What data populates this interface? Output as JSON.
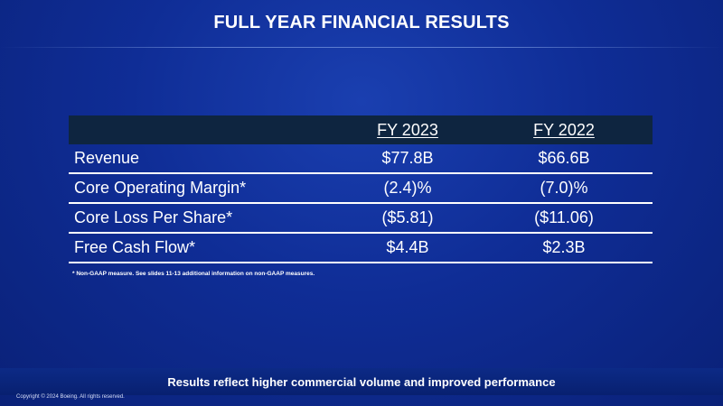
{
  "title": "FULL YEAR FINANCIAL RESULTS",
  "table": {
    "headers": [
      "",
      "FY 2023",
      "FY 2022"
    ],
    "rows": [
      {
        "label": "Revenue",
        "fy2023": "$77.8B",
        "fy2022": "$66.6B"
      },
      {
        "label": "Core Operating Margin*",
        "fy2023": "(2.4)%",
        "fy2022": "(7.0)%"
      },
      {
        "label": "Core Loss Per Share*",
        "fy2023": "($5.81)",
        "fy2022": "($11.06)"
      },
      {
        "label": "Free Cash Flow*",
        "fy2023": "$4.4B",
        "fy2022": "$2.3B"
      }
    ]
  },
  "footnote": "* Non-GAAP measure. See slides 11-13 additional information on non-GAAP measures.",
  "bottom_banner": "Results reflect higher commercial volume and improved performance",
  "copyright": "Copyright © 2024 Boeing. All rights reserved."
}
